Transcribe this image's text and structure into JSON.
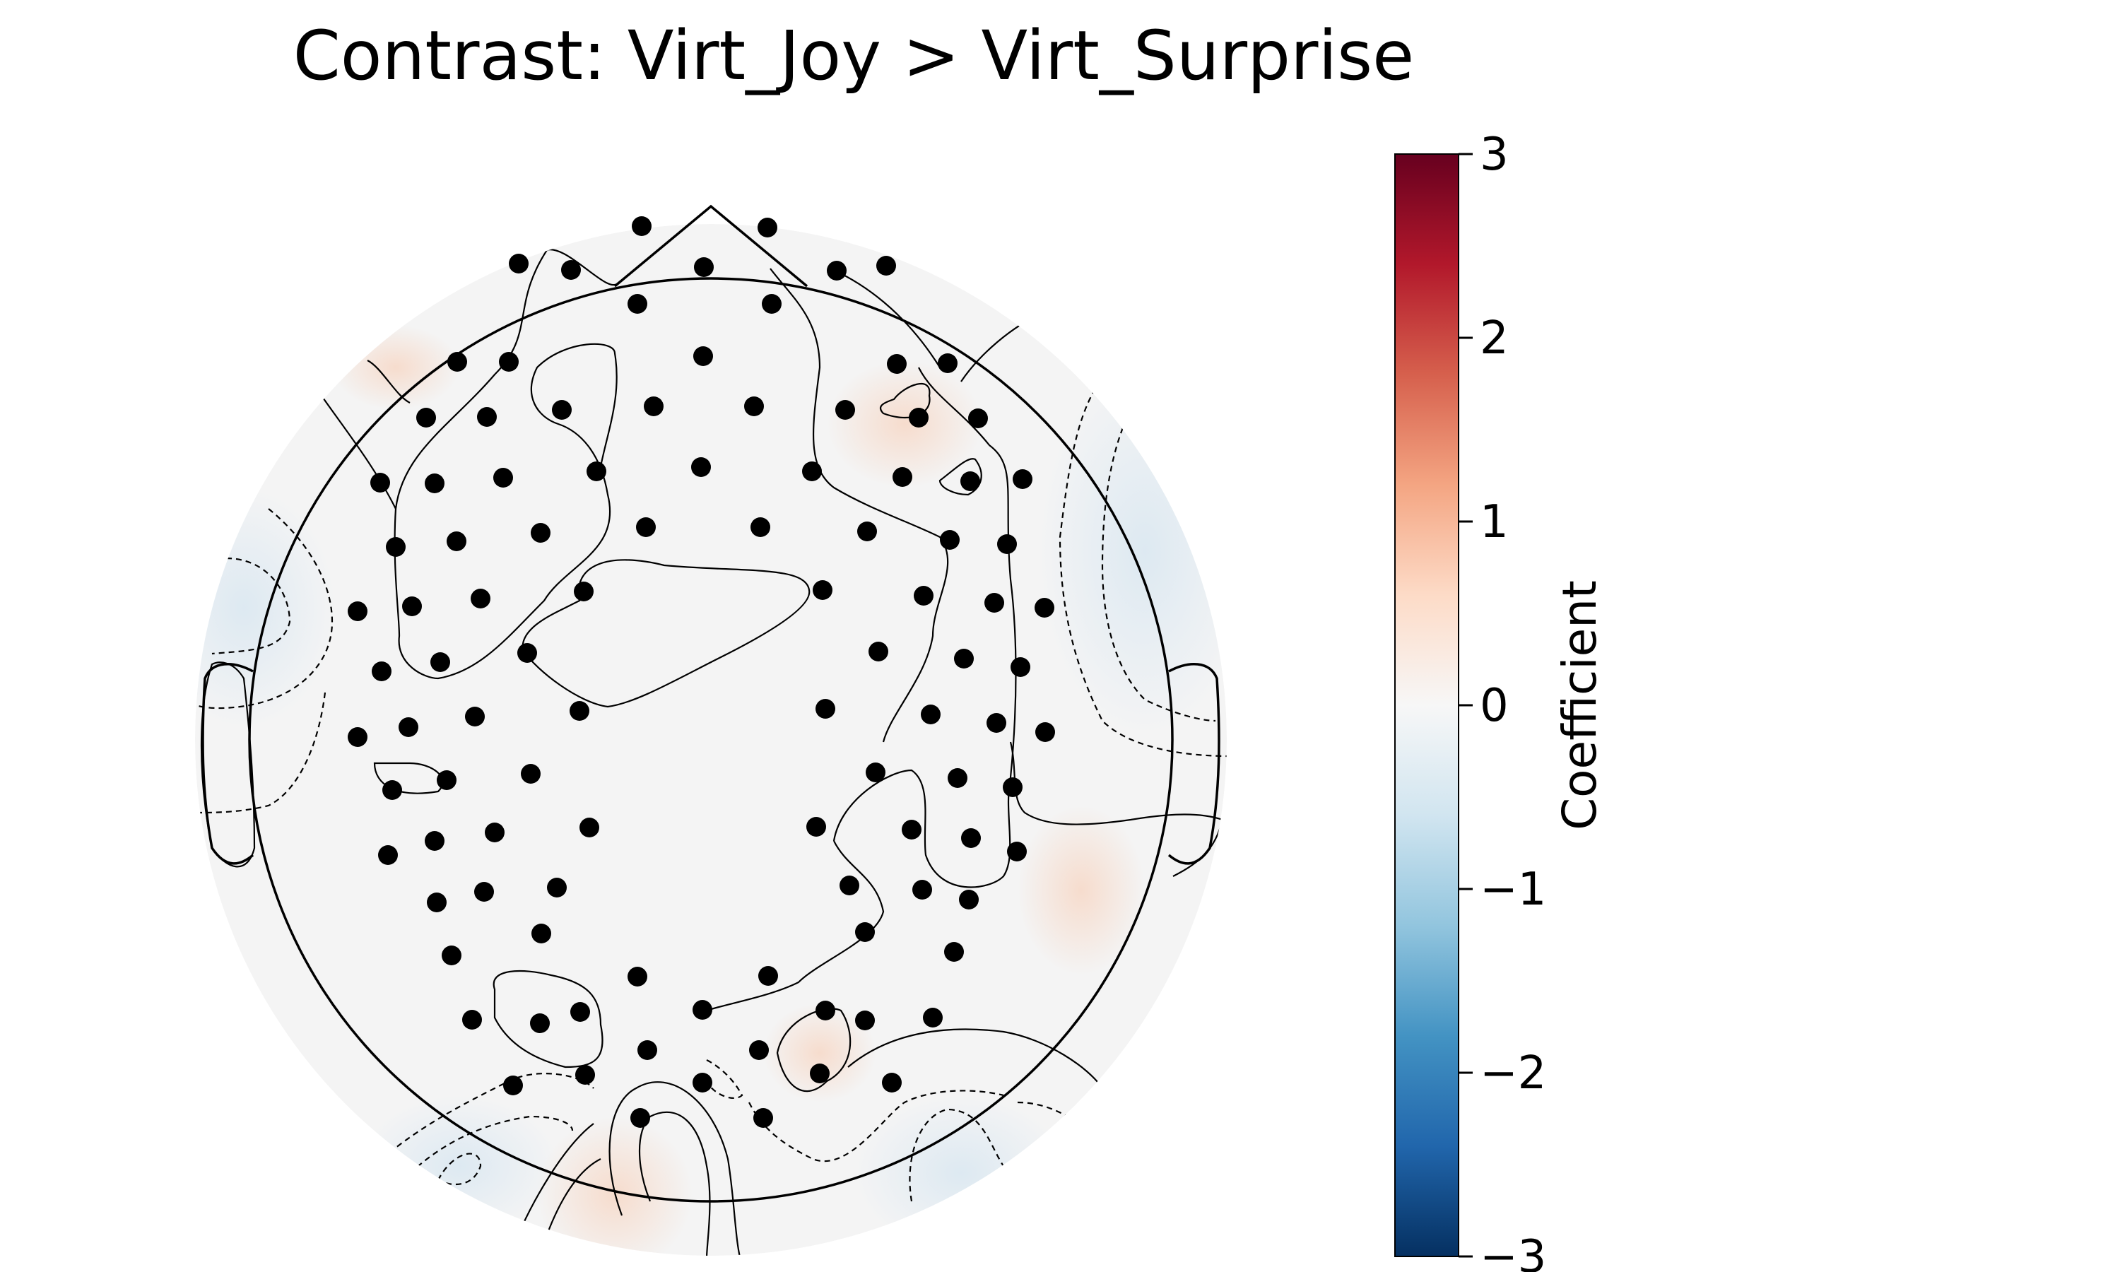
{
  "chart_data": {
    "type": "heatmap",
    "subtype": "eeg-topomap",
    "title": "Contrast: Virt_Joy > Virt_Surprise",
    "colorbar": {
      "label": "Coefficient",
      "vmin": -3,
      "vmax": 3,
      "ticks": [
        3,
        2,
        1,
        0,
        -1,
        -2,
        -3
      ],
      "tick_labels": [
        "3",
        "2",
        "1",
        "0",
        "−1",
        "−2",
        "−3"
      ],
      "colormap": "RdBu_r",
      "stops": [
        "#67001f",
        "#b2182b",
        "#d6604d",
        "#f4a582",
        "#fddbc7",
        "#f7f7f7",
        "#d1e5f0",
        "#92c5de",
        "#4393c3",
        "#2166ac",
        "#053061"
      ]
    },
    "field_colors": {
      "background": "#f4f4f4",
      "slight_positive": "#f8e6dc",
      "slight_negative": "#e3edf4"
    },
    "electrodes_shown": true,
    "electrode_color": "#000000",
    "contours": "solid for positive, dashed for negative",
    "head_outline": true
  }
}
